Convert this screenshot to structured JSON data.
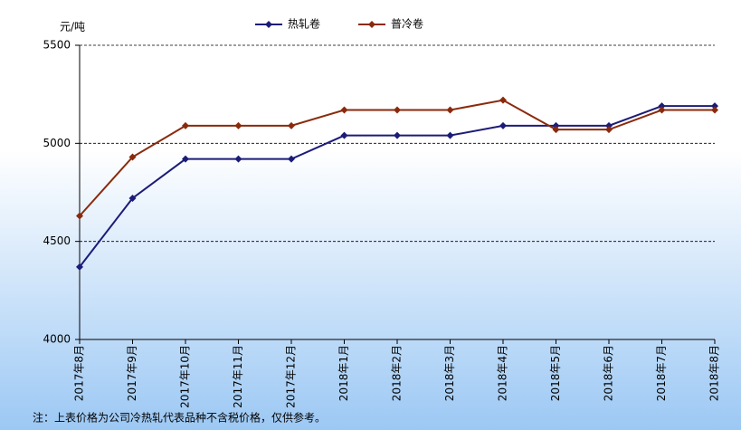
{
  "chart_data": {
    "type": "line",
    "y_label": "元/吨",
    "categories": [
      "2017年8月",
      "2017年9月",
      "2017年10月",
      "2017年11月",
      "2017年12月",
      "2018年1月",
      "2018年2月",
      "2018年3月",
      "2018年4月",
      "2018年5月",
      "2018年6月",
      "2018年7月",
      "2018年8月"
    ],
    "series": [
      {
        "name": "热轧卷",
        "color": "#1c1c78",
        "values": [
          4370,
          4720,
          4920,
          4920,
          4920,
          5040,
          5040,
          5040,
          5090,
          5090,
          5090,
          5190,
          5190
        ]
      },
      {
        "name": "普冷卷",
        "color": "#8a2a0c",
        "values": [
          4630,
          4930,
          5090,
          5090,
          5090,
          5170,
          5170,
          5170,
          5220,
          5070,
          5070,
          5170,
          5170
        ]
      }
    ],
    "ylim": [
      4000,
      5500
    ],
    "yticks": [
      4000,
      4500,
      5000,
      5500
    ],
    "grid": true,
    "legend": "top",
    "footnote": "注：上表价格为公司冷热轧代表品种不含税价格，仅供参考。"
  }
}
